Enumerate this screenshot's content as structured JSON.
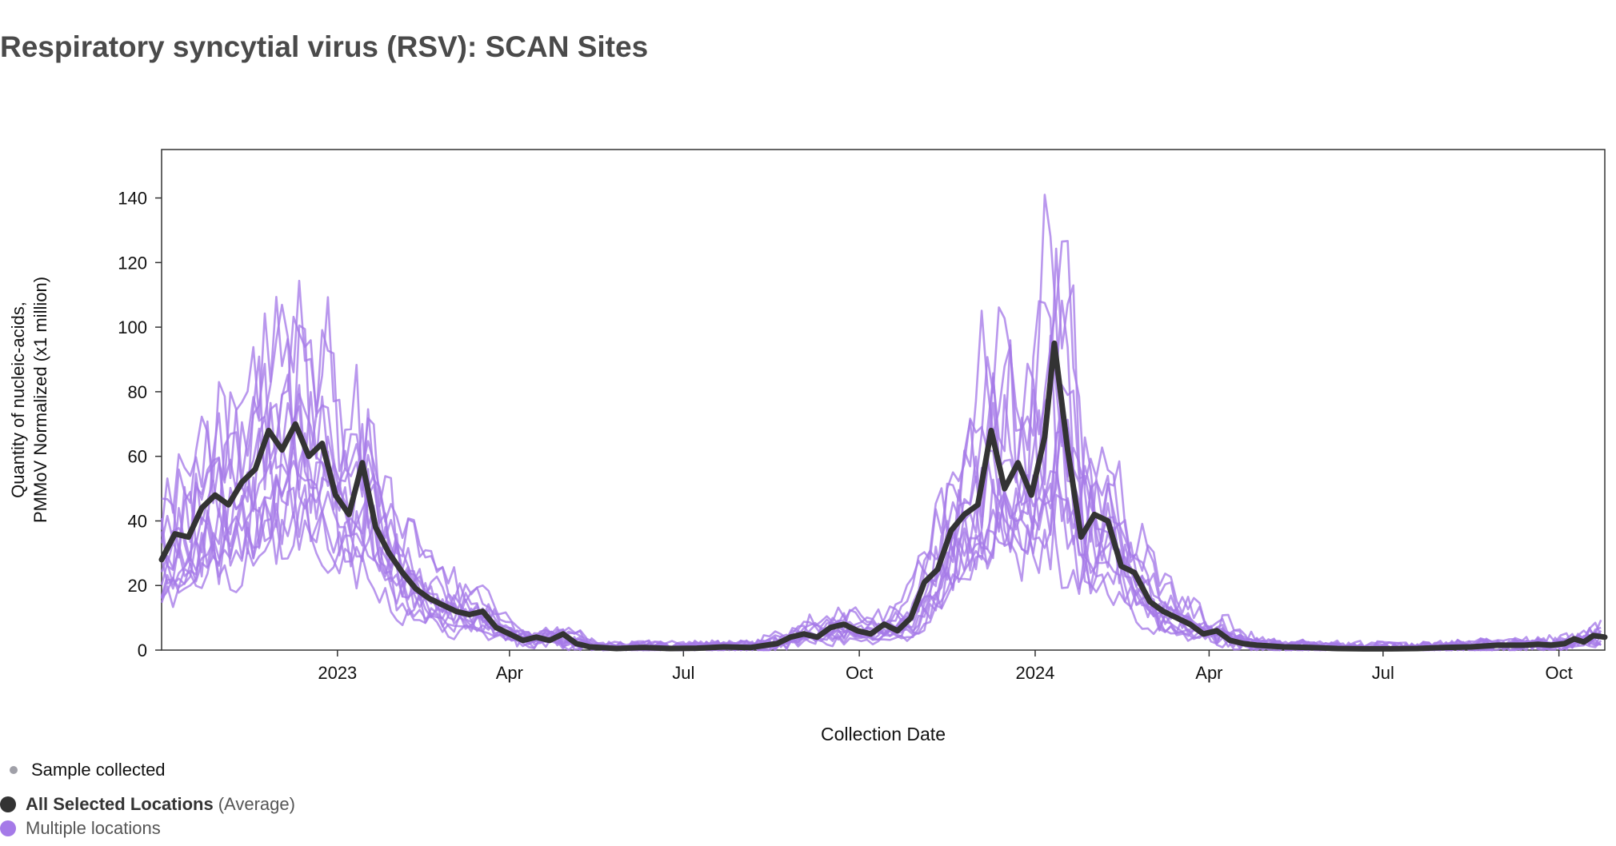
{
  "page": {
    "title": "Respiratory syncytial virus (RSV): SCAN Sites"
  },
  "legend": {
    "sample_collected": "Sample collected",
    "average_label": "All Selected Locations",
    "average_suffix": "(Average)",
    "multiple_label": "Multiple locations"
  },
  "colors": {
    "average": "#333333",
    "locations": "#a57ae8",
    "sample_dot": "#a0a0a8",
    "title": "#4a4a4a"
  },
  "chart_data": {
    "type": "line",
    "title": "Respiratory syncytial virus (RSV): SCAN Sites",
    "xlabel": "Collection Date",
    "ylabel": [
      "Quantity of nucleic-acids,",
      "PMMoV Normalized (x1 million)"
    ],
    "x_type": "date",
    "xlim": [
      "2022-10-01",
      "2024-10-25"
    ],
    "ylim": [
      0,
      155
    ],
    "yticks": [
      0,
      20,
      40,
      60,
      80,
      100,
      120,
      140
    ],
    "xticks": [
      {
        "date": "2023-01-01",
        "label": "2023"
      },
      {
        "date": "2023-04-01",
        "label": "Apr"
      },
      {
        "date": "2023-07-01",
        "label": "Jul"
      },
      {
        "date": "2023-10-01",
        "label": "Oct"
      },
      {
        "date": "2024-01-01",
        "label": "2024"
      },
      {
        "date": "2024-04-01",
        "label": "Apr"
      },
      {
        "date": "2024-07-01",
        "label": "Jul"
      },
      {
        "date": "2024-10-01",
        "label": "Oct"
      }
    ],
    "grid": false,
    "series": [
      {
        "name": "All Selected Locations",
        "role": "average",
        "points": [
          [
            "2022-10-01",
            28
          ],
          [
            "2022-10-08",
            36
          ],
          [
            "2022-10-15",
            35
          ],
          [
            "2022-10-22",
            44
          ],
          [
            "2022-10-29",
            48
          ],
          [
            "2022-11-05",
            45
          ],
          [
            "2022-11-12",
            52
          ],
          [
            "2022-11-19",
            56
          ],
          [
            "2022-11-26",
            68
          ],
          [
            "2022-12-03",
            62
          ],
          [
            "2022-12-10",
            70
          ],
          [
            "2022-12-17",
            60
          ],
          [
            "2022-12-24",
            64
          ],
          [
            "2022-12-31",
            48
          ],
          [
            "2023-01-07",
            42
          ],
          [
            "2023-01-14",
            58
          ],
          [
            "2023-01-21",
            38
          ],
          [
            "2023-01-28",
            30
          ],
          [
            "2023-02-04",
            24
          ],
          [
            "2023-02-11",
            19
          ],
          [
            "2023-02-18",
            16
          ],
          [
            "2023-02-25",
            14
          ],
          [
            "2023-03-04",
            12
          ],
          [
            "2023-03-11",
            11
          ],
          [
            "2023-03-18",
            12
          ],
          [
            "2023-03-25",
            7
          ],
          [
            "2023-04-01",
            5
          ],
          [
            "2023-04-08",
            3
          ],
          [
            "2023-04-15",
            4
          ],
          [
            "2023-04-22",
            3
          ],
          [
            "2023-04-29",
            5
          ],
          [
            "2023-05-06",
            2
          ],
          [
            "2023-05-13",
            1
          ],
          [
            "2023-05-27",
            0.5
          ],
          [
            "2023-06-10",
            0.8
          ],
          [
            "2023-06-24",
            0.5
          ],
          [
            "2023-07-08",
            0.6
          ],
          [
            "2023-07-22",
            1
          ],
          [
            "2023-08-05",
            0.8
          ],
          [
            "2023-08-19",
            2
          ],
          [
            "2023-08-26",
            4
          ],
          [
            "2023-09-02",
            5
          ],
          [
            "2023-09-09",
            4
          ],
          [
            "2023-09-16",
            7
          ],
          [
            "2023-09-23",
            8
          ],
          [
            "2023-09-30",
            6
          ],
          [
            "2023-10-07",
            5
          ],
          [
            "2023-10-14",
            8
          ],
          [
            "2023-10-21",
            6
          ],
          [
            "2023-10-28",
            10
          ],
          [
            "2023-11-04",
            21
          ],
          [
            "2023-11-11",
            25
          ],
          [
            "2023-11-18",
            37
          ],
          [
            "2023-11-25",
            42
          ],
          [
            "2023-12-02",
            45
          ],
          [
            "2023-12-09",
            68
          ],
          [
            "2023-12-16",
            50
          ],
          [
            "2023-12-23",
            58
          ],
          [
            "2023-12-30",
            48
          ],
          [
            "2024-01-06",
            66
          ],
          [
            "2024-01-11",
            95
          ],
          [
            "2024-01-18",
            62
          ],
          [
            "2024-01-25",
            35
          ],
          [
            "2024-02-01",
            42
          ],
          [
            "2024-02-08",
            40
          ],
          [
            "2024-02-15",
            26
          ],
          [
            "2024-02-22",
            24
          ],
          [
            "2024-03-01",
            15
          ],
          [
            "2024-03-08",
            12
          ],
          [
            "2024-03-15",
            10
          ],
          [
            "2024-03-22",
            8
          ],
          [
            "2024-03-29",
            5
          ],
          [
            "2024-04-05",
            6
          ],
          [
            "2024-04-12",
            3
          ],
          [
            "2024-04-19",
            2
          ],
          [
            "2024-04-26",
            1.5
          ],
          [
            "2024-05-10",
            1
          ],
          [
            "2024-05-24",
            0.8
          ],
          [
            "2024-06-07",
            0.5
          ],
          [
            "2024-06-21",
            0.4
          ],
          [
            "2024-07-05",
            0.4
          ],
          [
            "2024-07-19",
            0.5
          ],
          [
            "2024-08-02",
            0.8
          ],
          [
            "2024-08-16",
            1
          ],
          [
            "2024-08-30",
            1.5
          ],
          [
            "2024-09-13",
            1.5
          ],
          [
            "2024-09-20",
            1.8
          ],
          [
            "2024-09-27",
            1.5
          ],
          [
            "2024-10-04",
            2
          ],
          [
            "2024-10-09",
            3.5
          ],
          [
            "2024-10-14",
            2.5
          ],
          [
            "2024-10-19",
            4.5
          ],
          [
            "2024-10-25",
            4
          ]
        ]
      }
    ],
    "location_series_note": null
  }
}
